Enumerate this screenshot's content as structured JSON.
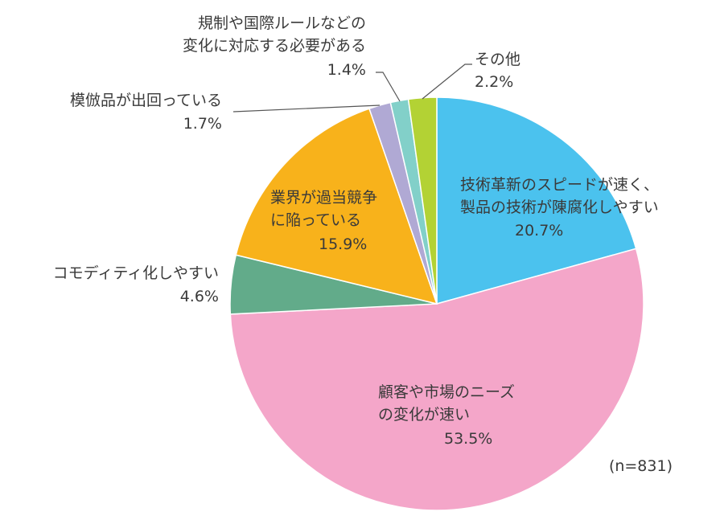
{
  "chart_data": {
    "type": "pie",
    "title": "",
    "note": "(n=831)",
    "start": "top",
    "direction": "clockwise",
    "slices": [
      {
        "label_lines": [
          "技術革新のスピードが速く、",
          "製品の技術が陳腐化しやすい"
        ],
        "value": 20.7,
        "value_label": "20.7%",
        "color": "#4bc2ee"
      },
      {
        "label_lines": [
          "顧客や市場のニーズ",
          "の変化が速い"
        ],
        "value": 53.5,
        "value_label": "53.5%",
        "color": "#f4a6c9"
      },
      {
        "label_lines": [
          "コモディティ化しやすい"
        ],
        "value": 4.6,
        "value_label": "4.6%",
        "color": "#62ab8a"
      },
      {
        "label_lines": [
          "業界が過当競争",
          "に陥っている"
        ],
        "value": 15.9,
        "value_label": "15.9%",
        "color": "#f8b21b"
      },
      {
        "label_lines": [
          "模倣品が出回っている"
        ],
        "value": 1.7,
        "value_label": "1.7%",
        "color": "#b0a9d4"
      },
      {
        "label_lines": [
          "規制や国際ルールなどの",
          "変化に対応する必要がある"
        ],
        "value": 1.4,
        "value_label": "1.4%",
        "color": "#82d0c9"
      },
      {
        "label_lines": [
          "その他"
        ],
        "value": 2.2,
        "value_label": "2.2%",
        "color": "#b3d234"
      }
    ]
  }
}
